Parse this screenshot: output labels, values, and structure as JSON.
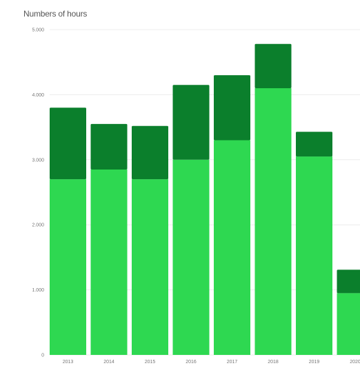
{
  "chart_data": {
    "type": "bar",
    "stacked": true,
    "title": "Numbers of hours",
    "categories": [
      "2013",
      "2014",
      "2015",
      "2016",
      "2017",
      "2018",
      "2019",
      "2020"
    ],
    "series": [
      {
        "values": [
          2700,
          2850,
          2700,
          3000,
          3300,
          4100,
          3050,
          950
        ]
      },
      {
        "values": [
          1100,
          700,
          820,
          1150,
          1000,
          680,
          380,
          360
        ]
      }
    ],
    "colors": [
      "#2ed851",
      "#0b7f2c"
    ],
    "ylim": [
      0,
      5000
    ],
    "yticks": [
      0,
      1000,
      2000,
      3000,
      4000,
      5000
    ],
    "ytick_labels": [
      "0",
      "1.000",
      "2.000",
      "3.000",
      "4.000",
      "5.000"
    ],
    "grid": true,
    "legend": "none"
  }
}
